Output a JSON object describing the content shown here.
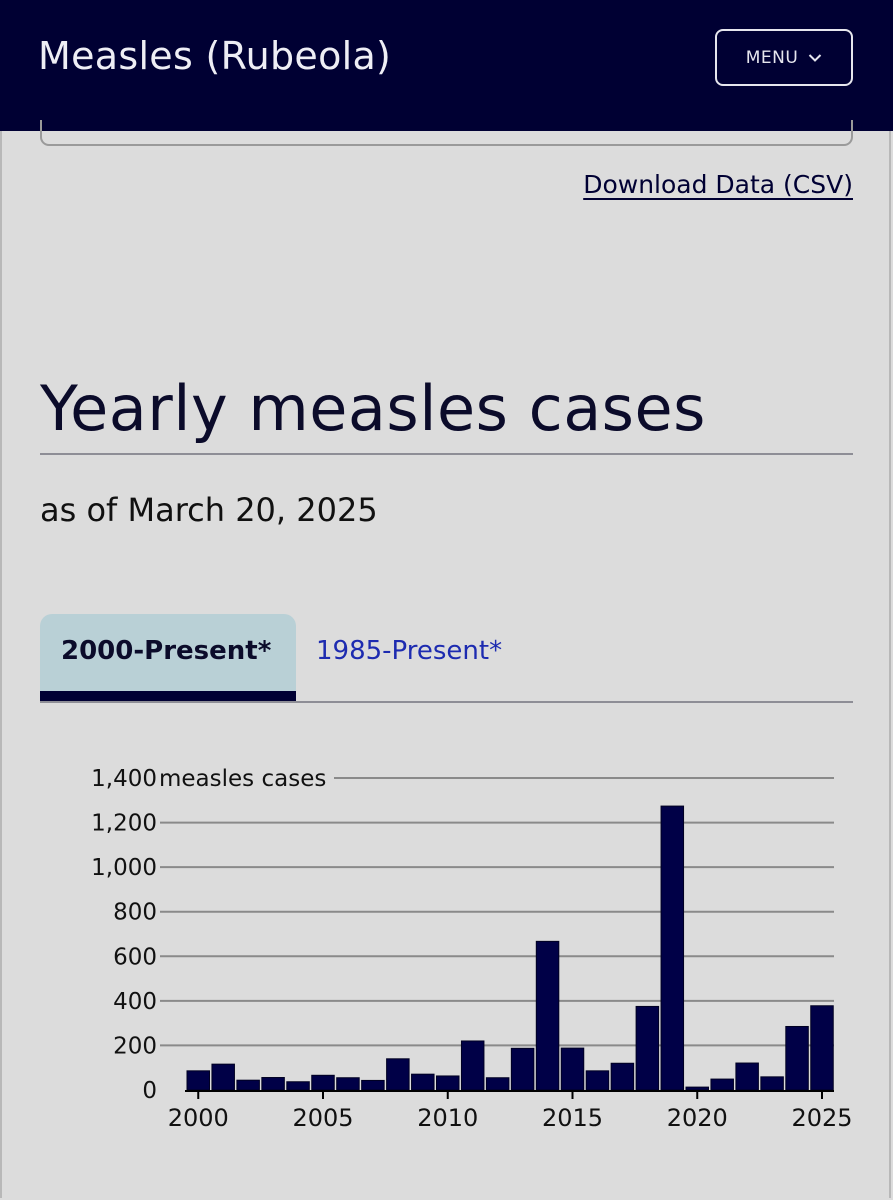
{
  "header": {
    "title": "Measles (Rubeola)",
    "menu_label": "MENU"
  },
  "download_link": "Download Data (CSV)",
  "section": {
    "title": "Yearly measles cases",
    "as_of": "as of March 20, 2025"
  },
  "tabs": [
    {
      "label": "2000-Present*",
      "active": true
    },
    {
      "label": "1985-Present*",
      "active": false
    }
  ],
  "colors": {
    "header_bg": "#000033",
    "bar": "#000047",
    "tab_active_bg": "#b9d0d6",
    "tab_link": "#1d2bb0"
  },
  "chart_data": {
    "type": "bar",
    "title": "",
    "xlabel": "",
    "ylabel": "measles cases",
    "ylim": [
      0,
      1400
    ],
    "y_ticks": [
      0,
      200,
      400,
      600,
      800,
      1000,
      1200,
      1400
    ],
    "y_tick_labels": [
      "0",
      "200",
      "400",
      "600",
      "800",
      "1,000",
      "1,200",
      "1,400"
    ],
    "x_tick_labels": [
      "2000",
      "2005",
      "2010",
      "2015",
      "2020",
      "2025"
    ],
    "grid": true,
    "categories": [
      2000,
      2001,
      2002,
      2003,
      2004,
      2005,
      2006,
      2007,
      2008,
      2009,
      2010,
      2011,
      2012,
      2013,
      2014,
      2015,
      2016,
      2017,
      2018,
      2019,
      2020,
      2021,
      2022,
      2023,
      2024,
      2025
    ],
    "values": [
      86,
      116,
      44,
      56,
      37,
      66,
      55,
      43,
      140,
      71,
      63,
      220,
      55,
      187,
      667,
      188,
      86,
      120,
      375,
      1274,
      13,
      49,
      121,
      59,
      285,
      378
    ]
  }
}
